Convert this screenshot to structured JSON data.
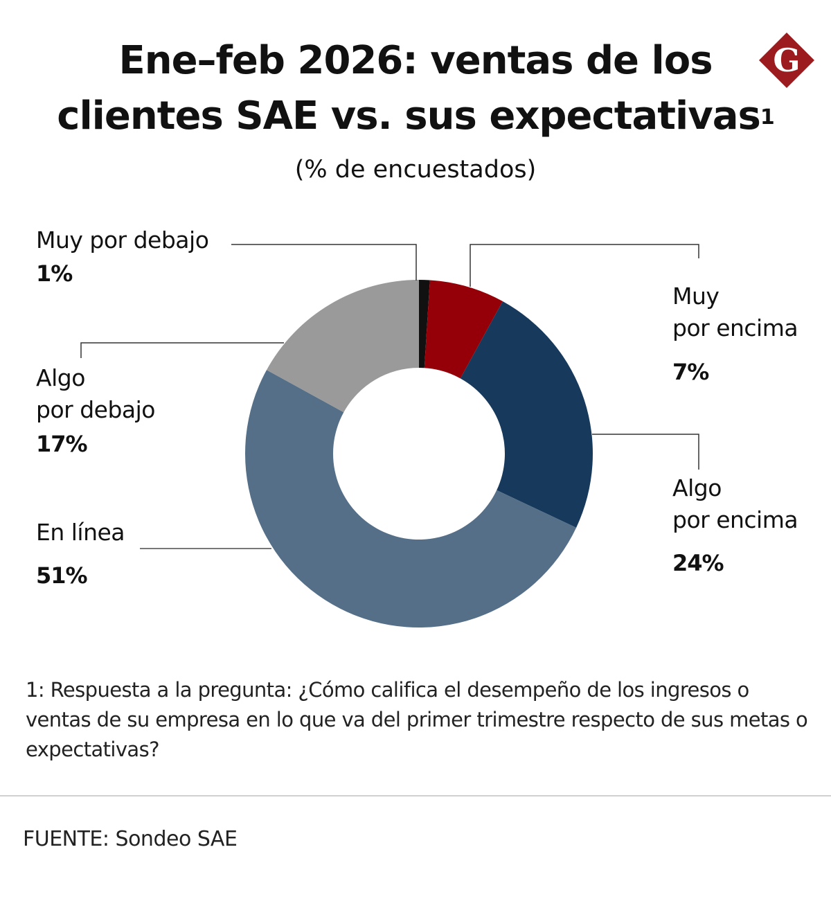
{
  "header": {
    "title_line1": "Ene–feb 2026: ventas de los",
    "title_line2": "clientes SAE vs. sus expectativas",
    "title_superscript": "1",
    "subtitle": "(% de encuestados)",
    "logo_letter": "G",
    "logo_color": "#9b1b1e"
  },
  "chart_data": {
    "type": "pie",
    "subtype": "donut",
    "title": "Ene–feb 2026: ventas de los clientes SAE vs. sus expectativas",
    "subtitle": "(% de encuestados)",
    "start": "12 o'clock, clockwise",
    "slices": [
      {
        "key": "muy_por_debajo",
        "label_lines": [
          "Muy  por debajo"
        ],
        "value": 1,
        "display": "1%",
        "color": "#111111"
      },
      {
        "key": "muy_por_encima",
        "label_lines": [
          "Muy",
          "por encima"
        ],
        "value": 7,
        "display": "7%",
        "color": "#950008"
      },
      {
        "key": "algo_por_encima",
        "label_lines": [
          "Algo",
          "por encima"
        ],
        "value": 24,
        "display": "24%",
        "color": "#173a5c"
      },
      {
        "key": "en_linea",
        "label_lines": [
          "En línea"
        ],
        "value": 51,
        "display": "51%",
        "color": "#546f87"
      },
      {
        "key": "algo_por_debajo",
        "label_lines": [
          "Algo",
          "por debajo"
        ],
        "value": 17,
        "display": "17%",
        "color": "#9a9a9a"
      }
    ]
  },
  "footnote": "1: Respuesta a la pregunta: ¿Cómo califica el desempeño de los ingresos o ventas de su empresa en lo que va del primer trimestre respecto de sus metas o expectativas?",
  "source": "FUENTE: Sondeo SAE"
}
